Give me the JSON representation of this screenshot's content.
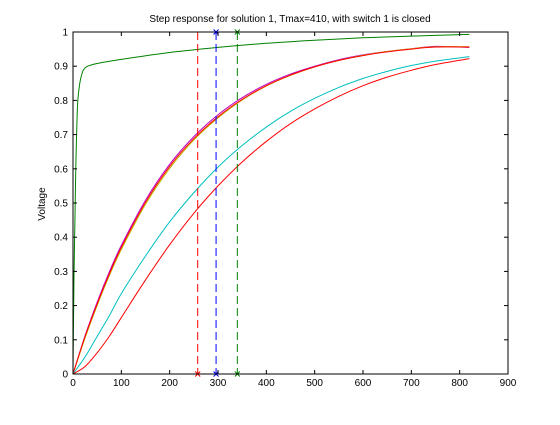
{
  "chart_data": {
    "type": "line",
    "title": "Step response for solution 1, Tmax=410, with switch 1 is closed",
    "xlabel": "",
    "ylabel": "Voltage",
    "xlim": [
      0,
      900
    ],
    "ylim": [
      0,
      1
    ],
    "xticks": [
      "0",
      "100",
      "200",
      "300",
      "400",
      "500",
      "600",
      "700",
      "800",
      "900"
    ],
    "yticks": [
      "0",
      "0.1",
      "0.2",
      "0.3",
      "0.4",
      "0.5",
      "0.6",
      "0.7",
      "0.8",
      "0.9",
      "1"
    ],
    "grid": false,
    "legend": "none",
    "series": [
      {
        "color": "#008000",
        "x": [
          0,
          2,
          4,
          6,
          8,
          10,
          14,
          18,
          22,
          30,
          50,
          100,
          200,
          300,
          400,
          500,
          600,
          700,
          820
        ],
        "y": [
          0,
          0.28,
          0.45,
          0.62,
          0.73,
          0.8,
          0.85,
          0.875,
          0.89,
          0.9,
          0.908,
          0.92,
          0.94,
          0.955,
          0.967,
          0.976,
          0.983,
          0.988,
          0.993
        ]
      },
      {
        "color": "#bf00bf",
        "x": [
          0,
          25,
          50,
          75,
          100,
          150,
          200,
          250,
          300,
          350,
          400,
          450,
          500,
          550,
          600,
          650,
          700,
          750,
          820
        ],
        "y": [
          0,
          0.112,
          0.21,
          0.298,
          0.376,
          0.508,
          0.613,
          0.694,
          0.758,
          0.808,
          0.847,
          0.877,
          0.9,
          0.919,
          0.933,
          0.943,
          0.951,
          0.958,
          0.955
        ]
      },
      {
        "color": "#bfbf00",
        "x": [
          0,
          25,
          50,
          75,
          100,
          150,
          200,
          250,
          300,
          350,
          400,
          450,
          500,
          550,
          600,
          650,
          700,
          750,
          820
        ],
        "y": [
          0,
          0.105,
          0.2,
          0.287,
          0.364,
          0.496,
          0.601,
          0.684,
          0.749,
          0.801,
          0.842,
          0.873,
          0.898,
          0.917,
          0.932,
          0.943,
          0.951,
          0.957,
          0.957
        ]
      },
      {
        "color": "#ff0000",
        "x": [
          0,
          25,
          50,
          75,
          100,
          150,
          200,
          250,
          300,
          350,
          400,
          450,
          500,
          550,
          600,
          650,
          700,
          750,
          820
        ],
        "y": [
          0,
          0.11,
          0.205,
          0.292,
          0.37,
          0.502,
          0.607,
          0.688,
          0.752,
          0.803,
          0.843,
          0.874,
          0.898,
          0.917,
          0.931,
          0.942,
          0.95,
          0.956,
          0.956
        ]
      },
      {
        "color": "#00bfbf",
        "x": [
          0,
          25,
          50,
          75,
          100,
          150,
          200,
          250,
          300,
          350,
          400,
          450,
          500,
          550,
          600,
          650,
          700,
          750,
          820
        ],
        "y": [
          0,
          0.05,
          0.11,
          0.17,
          0.235,
          0.345,
          0.445,
          0.53,
          0.605,
          0.668,
          0.722,
          0.768,
          0.806,
          0.838,
          0.864,
          0.885,
          0.902,
          0.915,
          0.928
        ]
      },
      {
        "color": "#ff0000",
        "x": [
          0,
          25,
          50,
          75,
          100,
          150,
          200,
          250,
          300,
          350,
          400,
          450,
          500,
          550,
          600,
          650,
          700,
          750,
          820
        ],
        "y": [
          0,
          0.022,
          0.062,
          0.11,
          0.165,
          0.275,
          0.378,
          0.47,
          0.55,
          0.62,
          0.68,
          0.732,
          0.775,
          0.812,
          0.843,
          0.868,
          0.888,
          0.905,
          0.922
        ]
      }
    ],
    "vlines": [
      {
        "x": 258,
        "color": "#ff0000",
        "dashed": true
      },
      {
        "x": 296,
        "color": "#0000ff",
        "dashed": true
      },
      {
        "x": 340,
        "color": "#008000",
        "dashed": true
      }
    ],
    "markers": [
      {
        "x": 258,
        "y": 0,
        "color": "#ff0000",
        "symbol": "x"
      },
      {
        "x": 296,
        "y": 0,
        "color": "#0000ff",
        "symbol": "x"
      },
      {
        "x": 340,
        "y": 0,
        "color": "#008000",
        "symbol": "x"
      },
      {
        "x": 296,
        "y": 1,
        "color": "#0000ff",
        "symbol": "x"
      },
      {
        "x": 340,
        "y": 1,
        "color": "#008000",
        "symbol": "x"
      }
    ]
  }
}
